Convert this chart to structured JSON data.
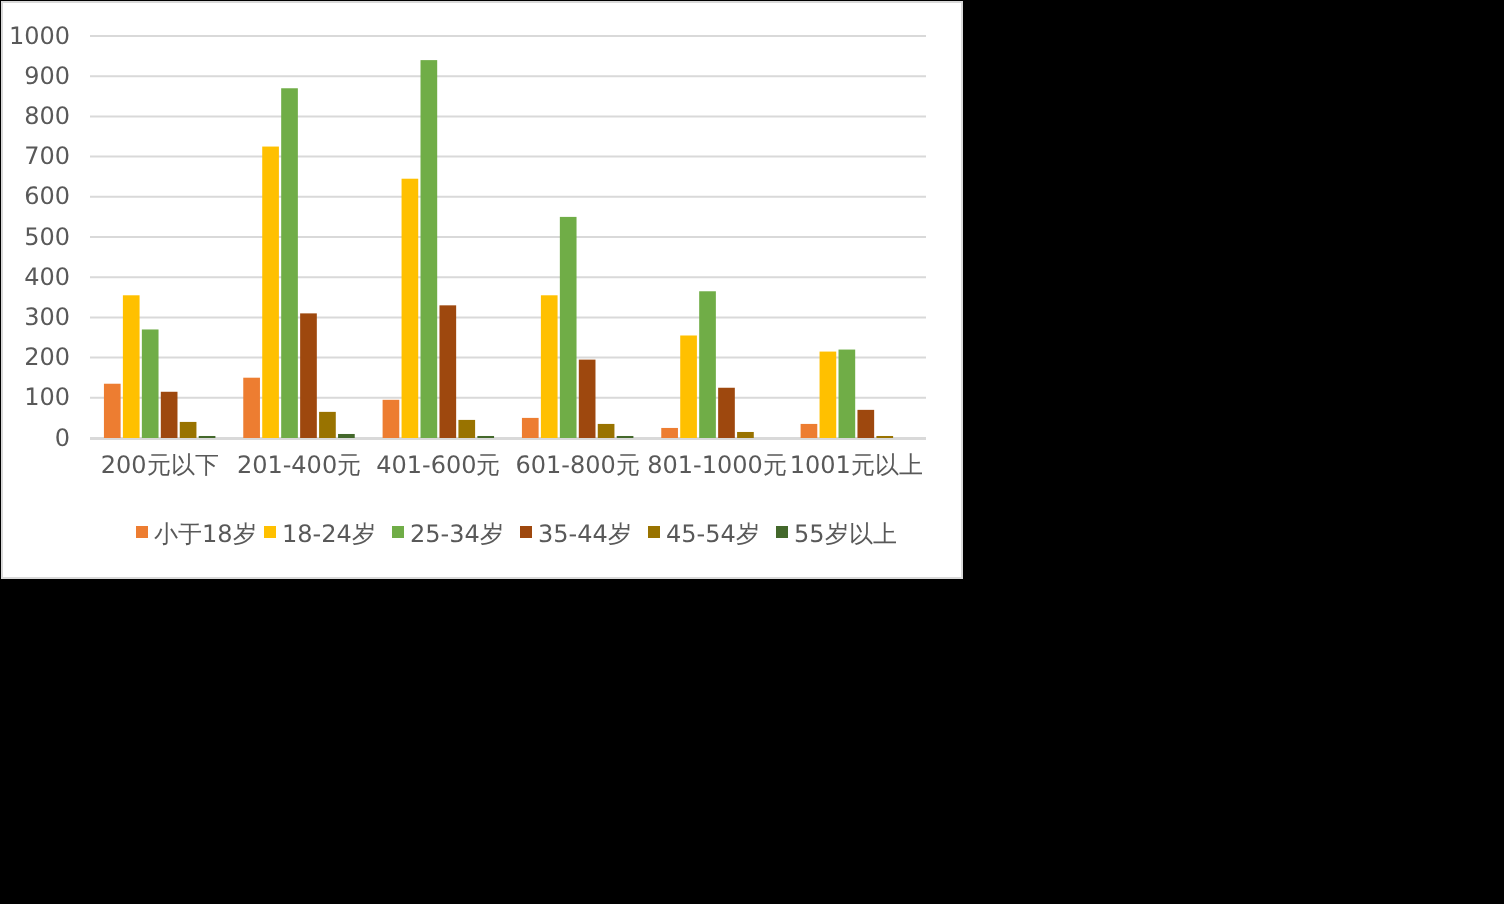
{
  "chart_data": {
    "type": "bar",
    "categories": [
      "200元以下",
      "201-400元",
      "401-600元",
      "601-800元",
      "801-1000元",
      "1001元以上"
    ],
    "series": [
      {
        "name": "小于18岁",
        "color": "#ed7d31",
        "values": [
          135,
          150,
          95,
          50,
          25,
          35
        ]
      },
      {
        "name": "18-24岁",
        "color": "#ffc000",
        "values": [
          355,
          725,
          645,
          355,
          255,
          215
        ]
      },
      {
        "name": "25-34岁",
        "color": "#70ad47",
        "values": [
          270,
          870,
          940,
          550,
          365,
          220
        ]
      },
      {
        "name": "35-44岁",
        "color": "#9e480e",
        "values": [
          115,
          310,
          330,
          195,
          125,
          70
        ]
      },
      {
        "name": "45-54岁",
        "color": "#997300",
        "values": [
          40,
          65,
          45,
          35,
          15,
          5
        ]
      },
      {
        "name": "55岁以上",
        "color": "#43682b",
        "values": [
          5,
          10,
          5,
          5,
          0,
          0
        ]
      }
    ],
    "ylim": [
      0,
      1000
    ],
    "yticks": [
      0,
      100,
      200,
      300,
      400,
      500,
      600,
      700,
      800,
      900,
      1000
    ],
    "grid": "y",
    "legend": "bottom"
  }
}
